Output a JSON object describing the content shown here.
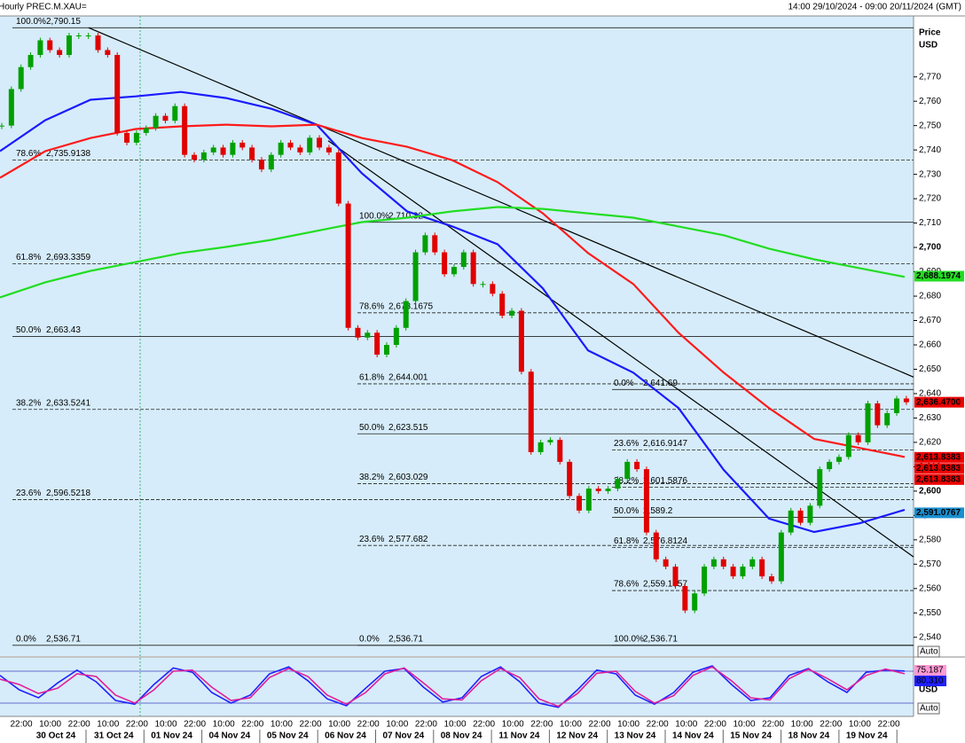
{
  "chart_data": {
    "type": "candlestick",
    "title": "Hourly PREC.M.XAU=",
    "date_range": "14:00 29/10/2024 - 09:00 20/11/2024 (GMT)",
    "y_axis_title": "Price",
    "y_axis_unit": "USD",
    "ylim": [
      2533,
      2795
    ],
    "yticks": [
      {
        "value": 2540,
        "label": "2,540"
      },
      {
        "value": 2550,
        "label": "2,550"
      },
      {
        "value": 2560,
        "label": "2,560"
      },
      {
        "value": 2570,
        "label": "2,570"
      },
      {
        "value": 2580,
        "label": "2,580"
      },
      {
        "value": 2590,
        "label": "2,590"
      },
      {
        "value": 2600,
        "label": "2,600"
      },
      {
        "value": 2610,
        "label": "2,610"
      },
      {
        "value": 2620,
        "label": "2,620"
      },
      {
        "value": 2630,
        "label": "2,630"
      },
      {
        "value": 2640,
        "label": "2,640"
      },
      {
        "value": 2650,
        "label": "2,650"
      },
      {
        "value": 2660,
        "label": "2,660"
      },
      {
        "value": 2670,
        "label": "2,670"
      },
      {
        "value": 2680,
        "label": "2,680"
      },
      {
        "value": 2690,
        "label": "2,690"
      },
      {
        "value": 2700,
        "label": "2,700"
      },
      {
        "value": 2710,
        "label": "2,710"
      },
      {
        "value": 2720,
        "label": "2,720"
      },
      {
        "value": 2730,
        "label": "2,730"
      },
      {
        "value": 2740,
        "label": "2,740"
      },
      {
        "value": 2750,
        "label": "2,750"
      },
      {
        "value": 2760,
        "label": "2,760"
      },
      {
        "value": 2770,
        "label": "2,770"
      }
    ],
    "bold_ticks": [
      2600,
      2700
    ],
    "up_color": "#00a000",
    "down_color": "#e00000",
    "close": [
      2750,
      2765,
      2774,
      2779,
      2785,
      2781,
      2779,
      2787,
      2787,
      2787,
      2781,
      2779,
      2747,
      2743,
      2747,
      2749,
      2754,
      2752,
      2758,
      2738,
      2736,
      2739,
      2741,
      2738,
      2743,
      2741,
      2736,
      2732,
      2738,
      2743,
      2741,
      2739,
      2745,
      2741,
      2739,
      2718,
      2667,
      2663,
      2665,
      2656,
      2660,
      2667,
      2678,
      2698,
      2705,
      2698,
      2689,
      2692,
      2698,
      2685,
      2685,
      2681,
      2672,
      2674,
      2649,
      2616,
      2620,
      2621,
      2612,
      2598,
      2592,
      2601,
      2600,
      2601,
      2605,
      2612,
      2609,
      2583,
      2572,
      2569,
      2561,
      2551,
      2558,
      2569,
      2572,
      2569,
      2565,
      2569,
      2572,
      2565,
      2563,
      2583,
      2592,
      2587,
      2594,
      2609,
      2612,
      2614,
      2623,
      2620,
      2636,
      2627,
      2632,
      2638,
      2636.47
    ],
    "moving_averages": [
      {
        "color": "#1a1aff",
        "values": [
          2739.5,
          2752.2,
          2760.6,
          2762,
          2763.8,
          2761.3,
          2756.9,
          2750.4,
          2730.4,
          2714.8,
          2708.6,
          2701.3,
          2683.2,
          2657.7,
          2648.6,
          2634.1,
          2608.7,
          2588.7,
          2583.2,
          2586.8,
          2592.3
        ]
      },
      {
        "color": "#ff1a1a",
        "values": [
          2728.6,
          2739.5,
          2744.9,
          2748.6,
          2749.7,
          2750.4,
          2749.7,
          2750.4,
          2744.9,
          2741.3,
          2735.8,
          2726.8,
          2714,
          2697.7,
          2685,
          2665,
          2648.6,
          2634.1,
          2621.4,
          2617.7,
          2614
        ]
      },
      {
        "color": "#22dd22",
        "values": [
          2679.5,
          2685.7,
          2690.4,
          2694,
          2697.7,
          2700.2,
          2703.1,
          2706.8,
          2710.4,
          2712.2,
          2714.8,
          2716.6,
          2715.8,
          2714,
          2712.2,
          2708.6,
          2705,
          2699.5,
          2695.1,
          2691.5,
          2687.9
        ]
      }
    ],
    "trendlines": [
      {
        "from": 2790.15,
        "to": 2646.8
      },
      {
        "from": 2743.8,
        "to": 2573
      }
    ],
    "fib_sets": [
      {
        "levels": [
          {
            "pct": "100.0%",
            "line": "solid",
            "price": {
              "value": 2790.15,
              "label": "2,790.15"
            }
          },
          {
            "pct": "78.6%",
            "line": "dashed",
            "price": {
              "value": 2735.9138,
              "label": "2,735.9138"
            }
          },
          {
            "pct": "61.8%",
            "line": "dashed",
            "price": {
              "value": 2693.3359,
              "label": "2,693.3359"
            }
          },
          {
            "pct": "50.0%",
            "line": "solid",
            "price": {
              "value": 2663.43,
              "label": "2,663.43"
            }
          },
          {
            "pct": "38.2%",
            "line": "dashed",
            "price": {
              "value": 2633.5241,
              "label": "2,633.5241"
            }
          },
          {
            "pct": "23.6%",
            "line": "dashed",
            "price": {
              "value": 2596.5218,
              "label": "2,596.5218"
            }
          },
          {
            "pct": "0.0%",
            "line": "solid",
            "price": {
              "value": 2536.71,
              "label": "2,536.71"
            }
          }
        ]
      },
      {
        "levels": [
          {
            "pct": "100.0%",
            "line": "solid",
            "price": {
              "value": 2710.32,
              "label": "2,710.32"
            }
          },
          {
            "pct": "78.6%",
            "line": "dashed",
            "price": {
              "value": 2673.1675,
              "label": "2,673.1675"
            }
          },
          {
            "pct": "61.8%",
            "line": "dashed",
            "price": {
              "value": 2644.001,
              "label": "2,644.001"
            }
          },
          {
            "pct": "50.0%",
            "line": "solid",
            "price": {
              "value": 2623.515,
              "label": "2,623.515"
            }
          },
          {
            "pct": "38.2%",
            "line": "dashed",
            "price": {
              "value": 2603.029,
              "label": "2,603.029"
            }
          },
          {
            "pct": "23.6%",
            "line": "dashed",
            "price": {
              "value": 2577.682,
              "label": "2,577.682"
            }
          },
          {
            "pct": "0.0%",
            "line": "solid",
            "price": {
              "value": 2536.71,
              "label": "2,536.71"
            }
          }
        ]
      },
      {
        "levels": [
          {
            "pct": "0.0%",
            "line": "solid",
            "price": {
              "value": 2641.69,
              "label": "2,641.69"
            }
          },
          {
            "pct": "23.6%",
            "line": "dashed",
            "price": {
              "value": 2616.9147,
              "label": "2,616.9147"
            }
          },
          {
            "pct": "38.2%",
            "line": "dashed",
            "price": {
              "value": 2601.5876,
              "label": "2,601.5876"
            }
          },
          {
            "pct": "50.0%",
            "line": "solid",
            "price": {
              "value": 2589.2,
              "label": "2,589.2"
            }
          },
          {
            "pct": "61.8%",
            "line": "dashed",
            "price": {
              "value": 2576.8124,
              "label": "2,576.8124"
            }
          },
          {
            "pct": "78.6%",
            "line": "dashed",
            "price": {
              "value": 2559.1757,
              "label": "2,559.1757"
            }
          },
          {
            "pct": "100.0%",
            "line": "solid",
            "price": {
              "value": 2536.71,
              "label": "2,536.71"
            }
          }
        ]
      }
    ],
    "badges": [
      {
        "value": 2688.1974,
        "label": "2,688.1974",
        "color": "#22dd22"
      },
      {
        "value": 2636.47,
        "label": "2,636.4700",
        "color": "#ee0000"
      },
      {
        "value": 2613.8383,
        "label": "2,613.8383",
        "color": "#ee0000"
      },
      {
        "value": 2613.8383,
        "label": "2,613.8383",
        "color": "#ee0000"
      },
      {
        "value": 2613.8383,
        "label": "2,613.8383",
        "color": "#ee0000"
      },
      {
        "value": 2591.0767,
        "label": "2,591.0767",
        "color": "#1a8fd0"
      }
    ],
    "oscillator": {
      "ylim": [
        0,
        100
      ],
      "levels": [
        80,
        20
      ],
      "unit": "USD",
      "series": [
        {
          "color": "#2020ff",
          "values": [
            72,
            45,
            30,
            58,
            82,
            60,
            25,
            18,
            55,
            86,
            78,
            40,
            20,
            35,
            75,
            88,
            62,
            28,
            15,
            48,
            80,
            85,
            50,
            22,
            30,
            70,
            88,
            60,
            20,
            12,
            45,
            82,
            75,
            35,
            18,
            40,
            78,
            90,
            55,
            25,
            30,
            72,
            85,
            60,
            40,
            78,
            82,
            80.31
          ],
          "value_label": "80.310"
        },
        {
          "color": "#e0209a",
          "values": [
            65,
            55,
            38,
            48,
            75,
            70,
            35,
            20,
            45,
            80,
            82,
            50,
            25,
            30,
            68,
            85,
            70,
            35,
            18,
            40,
            75,
            86,
            58,
            28,
            26,
            62,
            85,
            68,
            28,
            14,
            38,
            76,
            80,
            42,
            20,
            34,
            72,
            88,
            62,
            30,
            26,
            66,
            84,
            66,
            45,
            72,
            84,
            75.187
          ],
          "value_label": "75.187"
        }
      ]
    },
    "auto_button": "Auto",
    "time_labels": [
      "22:00",
      "10:00",
      "22:00",
      "10:00",
      "22:00",
      "10:00",
      "22:00",
      "10:00",
      "22:00",
      "10:00",
      "22:00",
      "10:00",
      "22:00",
      "10:00",
      "22:00",
      "10:00",
      "22:00",
      "10:00",
      "22:00",
      "10:00",
      "22:00",
      "10:00",
      "22:00",
      "10:00",
      "22:00",
      "10:00",
      "22:00",
      "10:00",
      "22:00",
      "10:00",
      "22:00"
    ],
    "date_labels": [
      "30 Oct 24",
      "31 Oct 24",
      "01 Nov 24",
      "04 Nov 24",
      "05 Nov 24",
      "06 Nov 24",
      "07 Nov 24",
      "08 Nov 24",
      "11 Nov 24",
      "12 Nov 24",
      "13 Nov 24",
      "14 Nov 24",
      "15 Nov 24",
      "18 Nov 24",
      "19 Nov 24"
    ]
  }
}
